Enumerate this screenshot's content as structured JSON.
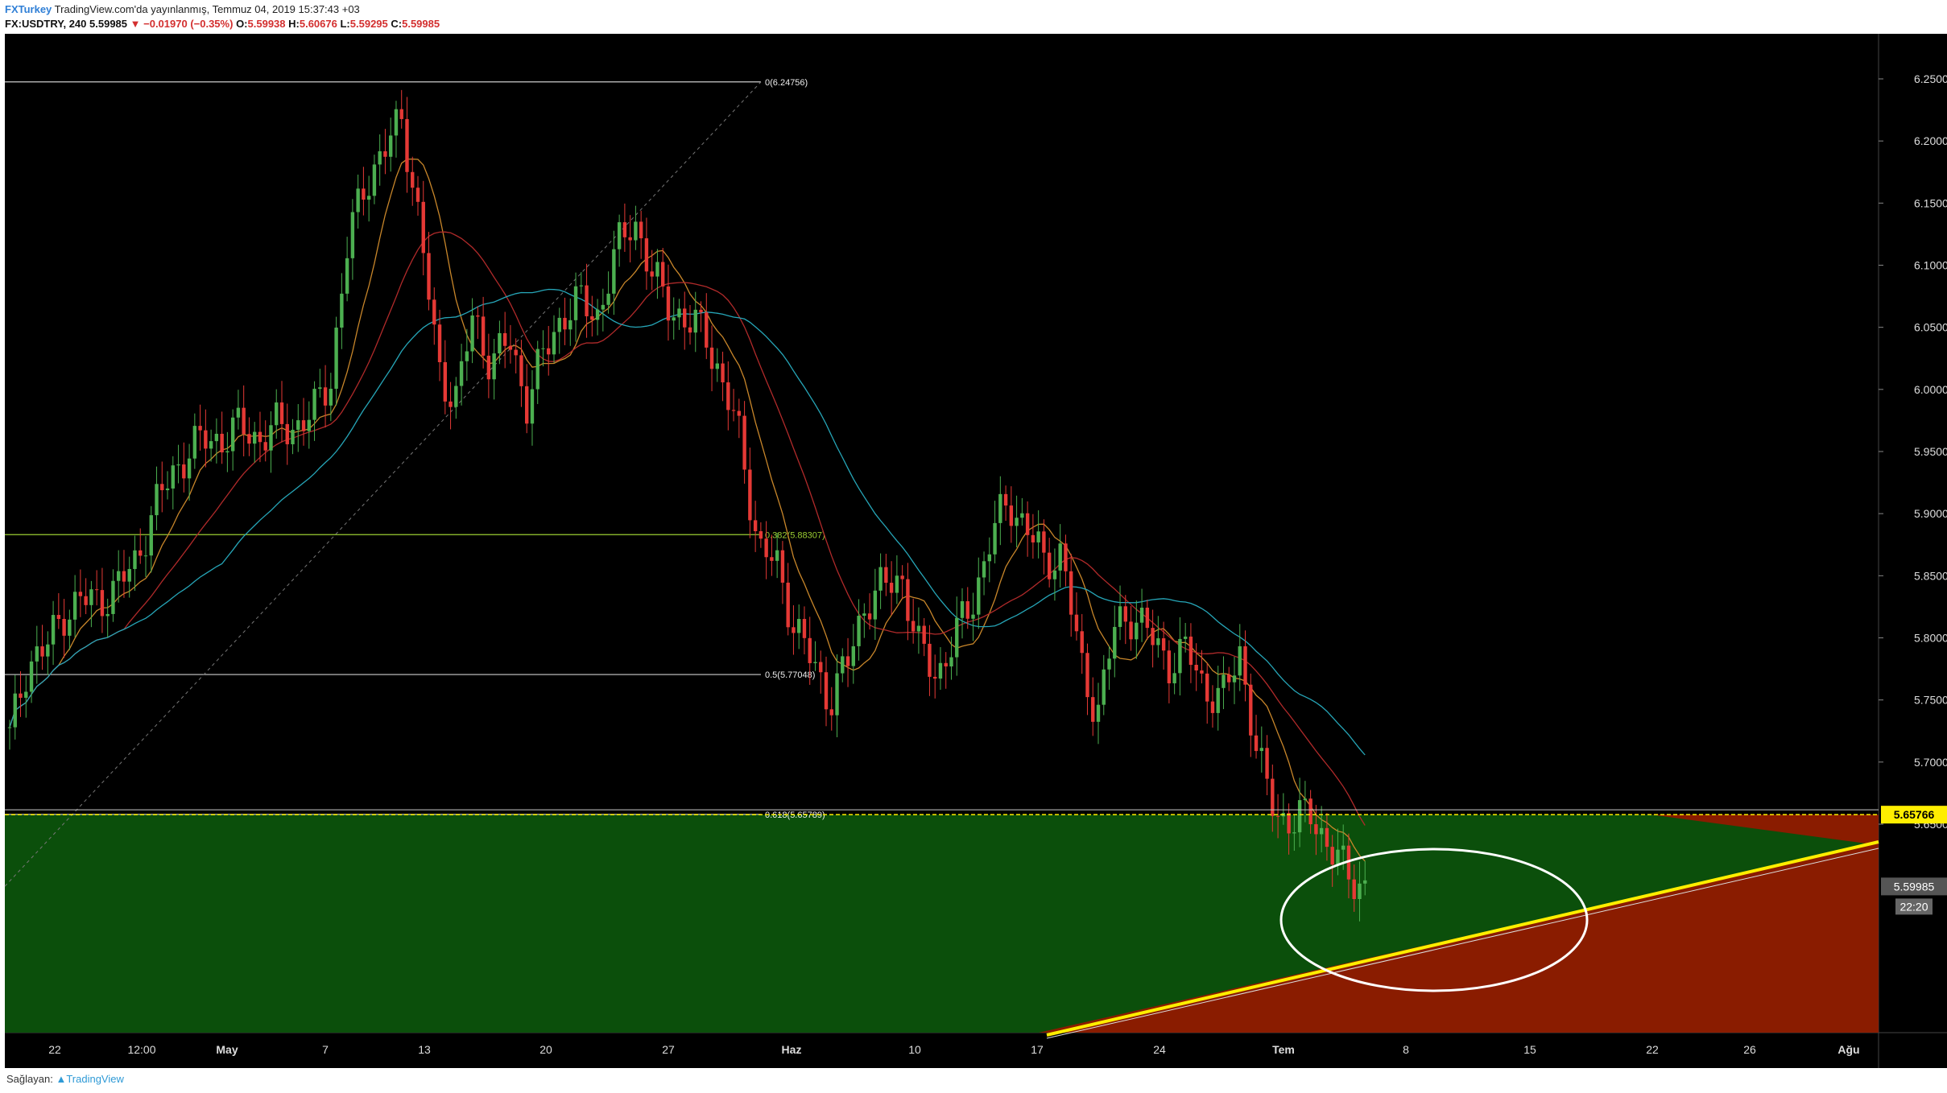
{
  "header": {
    "line1": {
      "author": "FXTurkey",
      "published": "TradingView.com'da yayınlanmış, Temmuz 04, 2019 15:37:43 +03"
    },
    "line2": {
      "symbol": "FX:USDTRY, 240",
      "last": "5.59985",
      "change": "▼ −0.01970 (−0.35%)",
      "o_label": "O:",
      "o_value": "5.59938",
      "h_label": "H:",
      "h_value": "5.60676",
      "l_label": "L:",
      "l_value": "5.59295",
      "c_label": "C:",
      "c_value": "5.59985"
    }
  },
  "footer": {
    "provider_label": "Sağlayan:",
    "provider_name": "TradingView"
  },
  "colors": {
    "background": "#000000",
    "up_candle": "#4caf50",
    "down_candle": "#e53935",
    "ma_short": "#c8862a",
    "ma_mid": "#b02a2a",
    "ma_long": "#26a6b8",
    "support_zone": "#0b4f0b",
    "target_zone": "#8a1c00",
    "trendline": "#ffee00",
    "fib_line": "#cccccc",
    "fib_mid_line": "#9acd32",
    "price_marker": "#ffee00",
    "ellipse": "#ffffff"
  },
  "chart_data": {
    "type": "candlestick",
    "symbol": "FX:USDTRY",
    "timeframe": "240",
    "y_axis": {
      "range": [
        5.61,
        6.27
      ],
      "ticks": [
        "6.25000",
        "6.20000",
        "6.15000",
        "6.10000",
        "6.05000",
        "6.00000",
        "5.95000",
        "5.90000",
        "5.85000",
        "5.80000",
        "5.75000",
        "5.70000",
        "5.65000"
      ]
    },
    "x_axis": {
      "ticks": [
        "22",
        "12:00",
        "May",
        "7",
        "13",
        "20",
        "27",
        "Haz",
        "10",
        "17",
        "24",
        "Tem",
        "8",
        "15",
        "22",
        "26",
        "Ağu"
      ]
    },
    "close_path": [
      5.72,
      5.78,
      5.79,
      5.82,
      5.83,
      5.83,
      5.84,
      5.86,
      5.9,
      5.93,
      5.95,
      5.96,
      5.96,
      5.97,
      5.96,
      5.97,
      5.97,
      5.98,
      6.01,
      6.12,
      6.17,
      6.19,
      6.22,
      6.13,
      6.02,
      5.99,
      6.06,
      6.02,
      6.04,
      5.99,
      6.03,
      6.06,
      6.07,
      6.06,
      6.11,
      6.14,
      6.09,
      6.07,
      6.05,
      6.05,
      6.0,
      5.96,
      5.87,
      5.86,
      5.81,
      5.78,
      5.75,
      5.78,
      5.83,
      5.84,
      5.85,
      5.79,
      5.77,
      5.8,
      5.83,
      5.88,
      5.91,
      5.89,
      5.86,
      5.87,
      5.78,
      5.74,
      5.81,
      5.82,
      5.8,
      5.78,
      5.79,
      5.76,
      5.75,
      5.79,
      5.7,
      5.66,
      5.65,
      5.66,
      5.63,
      5.61,
      5.6
    ],
    "fibonacci": [
      {
        "label": "0(6.24756)",
        "value": 6.24756
      },
      {
        "label": "0.382(5.88307)",
        "value": 5.88307
      },
      {
        "label": "0.5(5.77048)",
        "value": 5.77048
      },
      {
        "label": "0.618(5.65789)",
        "value": 5.65789
      }
    ],
    "horizontal_level": {
      "label": "5.65766",
      "value": 5.65766
    },
    "last_price": {
      "label": "5.59985",
      "value": 5.59985
    },
    "countdown": "22:20",
    "trendline": {
      "from_x": "Haz 17",
      "from_y": 5.61,
      "to_x": "Ağu",
      "to_y": 5.697
    },
    "annotations": [
      "green support zone below 5.65766",
      "red target zone",
      "ellipse around breakdown point"
    ]
  }
}
